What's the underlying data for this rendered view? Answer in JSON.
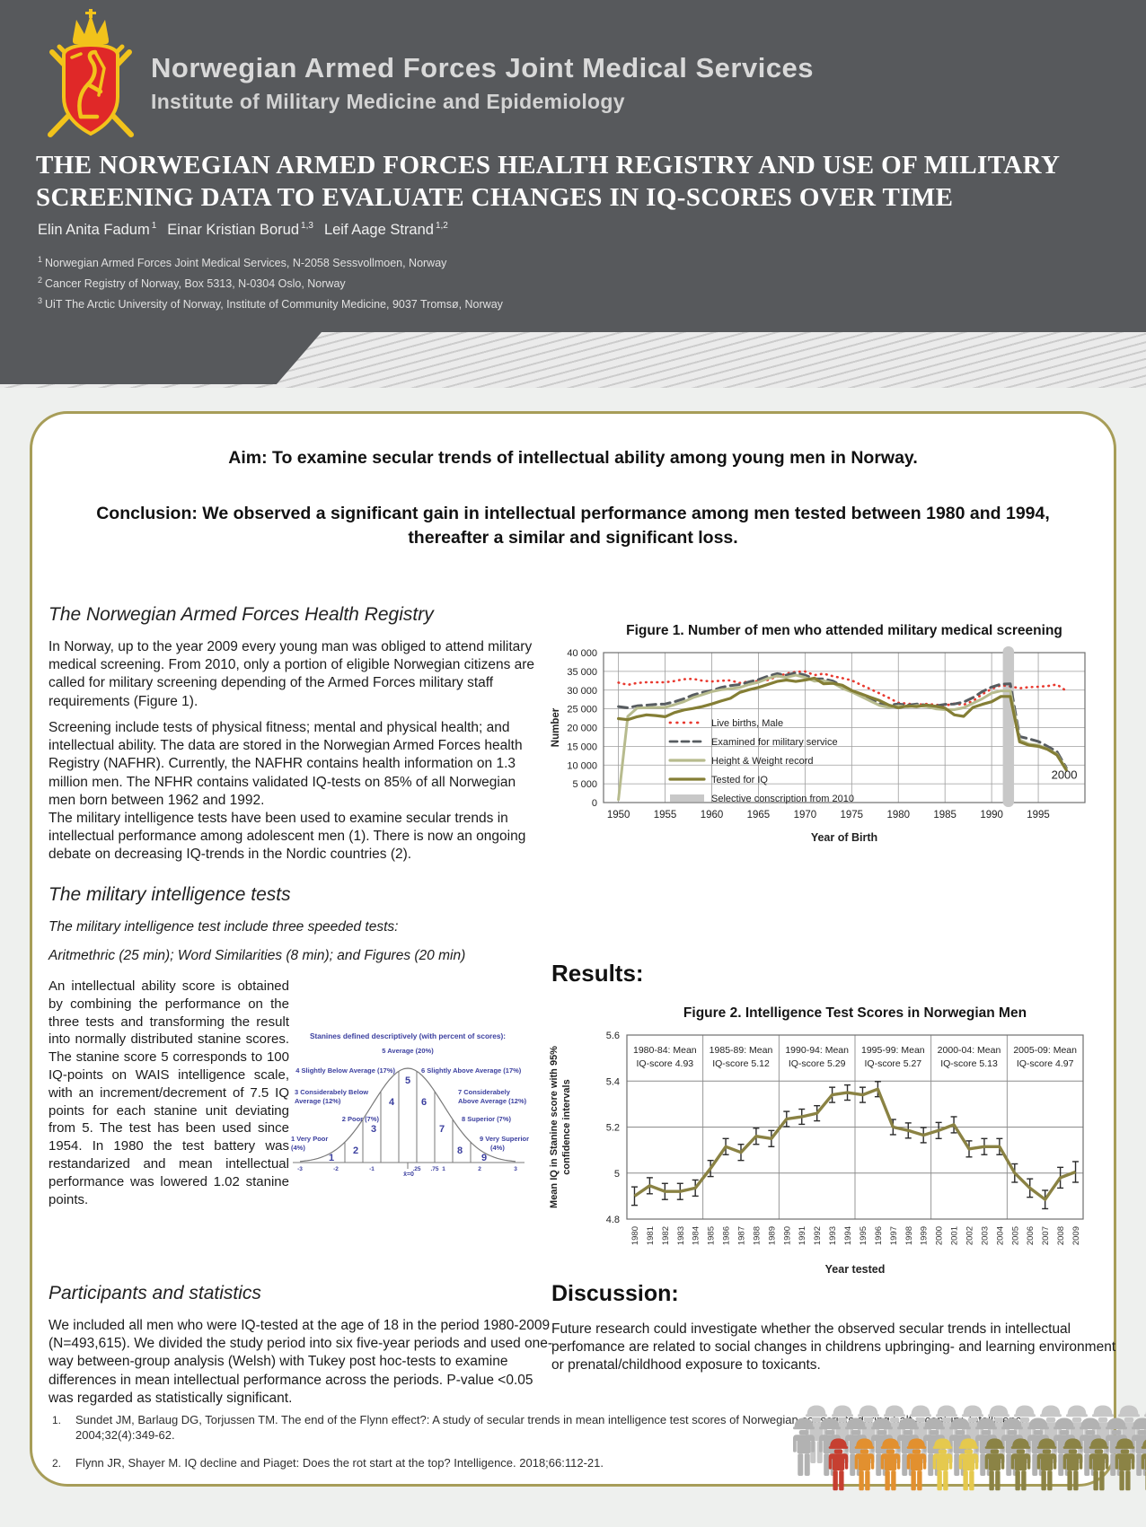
{
  "header": {
    "org_name": "Norwegian Armed Forces Joint Medical Services",
    "org_sub": "Institute of Military Medicine and Epidemiology",
    "title_line1": "THE NORWEGIAN ARMED FORCES HEALTH REGISTRY AND USE OF MILITARY",
    "title_line2": "SCREENING DATA TO EVALUATE CHANGES IN IQ-SCORES OVER TIME",
    "authors": [
      {
        "name": "Elin Anita Fadum",
        "sup": "1"
      },
      {
        "name": "Einar Kristian Borud",
        "sup": "1,3"
      },
      {
        "name": "Leif Aage Strand",
        "sup": "1,2"
      }
    ],
    "affiliations": [
      {
        "sup": "1",
        "text": "Norwegian Armed Forces Joint Medical Services, N-2058 Sessvollmoen, Norway"
      },
      {
        "sup": "2",
        "text": "Cancer Registry of Norway, Box 5313, N-0304 Oslo, Norway"
      },
      {
        "sup": "3",
        "text": "UiT The Arctic University of Norway, Institute of Community Medicine, 9037 Tromsø, Norway"
      }
    ]
  },
  "aim_box": {
    "aim_text": "Aim:  To examine secular trends of intellectual ability among young men in Norway.",
    "conclusion_text": "Conclusion:  We observed a significant gain in intellectual performance among men tested between 1980 and 1994, thereafter a similar and significant loss."
  },
  "left_column": {
    "registry_heading": "The Norwegian Armed Forces Health Registry",
    "registry_p1": "In Norway, up to the year 2009 every young man was obliged to attend military medical screening. From 2010, only a portion of eligible Norwegian citizens are called for military screening depending of the Armed Forces military staff requirements (Figure 1).",
    "registry_p2": "Screening include tests of physical fitness; mental and physical health; and intellectual ability. The data are stored in the Norwegian Armed Forces health Registry (NAFHR). Currently, the NAFHR contains health information on 1.3 million men. The NFHR contains validated IQ-tests on 85% of all Norwegian men born between 1962 and 1992.",
    "registry_p3": "The military intelligence tests have been used to examine secular trends in intellectual performance among adolescent men (1). There is now an ongoing debate on decreasing IQ-trends in the Nordic countries (2).",
    "tests_heading": "The military intelligence tests",
    "tests_intro": "The military intelligence test include three speeded tests:",
    "tests_detail": "Aritmethric (25 min); Word Similarities (8 min); and Figures (20 min)",
    "stanine_paragraph": "An intellectual ability score is obtained by combining the performance on the three tests and transforming the result into normally distributed stanine scores. The stanine score 5 corresponds to 100 IQ-points on WAIS intelligence scale, with an increment/decrement of 7.5 IQ points for each stanine unit deviating from 5. The test has been used since 1954. In 1980 the test battery was restandarized and mean intellectual performance was lowered 1.02 stanine points.",
    "participants_heading": "Participants and statistics",
    "participants_paragraph": "We included all men who were IQ-tested at the age of 18 in the period 1980-2009 (N=493,615). We divided the study period into six five-year periods and used one-way between-group analysis (Welsh) with Tukey post hoc-tests to examine differences in mean intellectual performance across the periods. P-value <0.05 was regarded as statistically significant."
  },
  "results_heading": "Results:",
  "discussion": {
    "heading": "Discussion:",
    "paragraph": "Future research could investigate whether the observed secular trends in intellectual perfomance are related to social changes in childrens upbringing- and learning environment or prenatal/childhood exposure to toxicants."
  },
  "references": [
    {
      "num": "1.",
      "text": "Sundet JM, Barlaug DG, Torjussen TM. The end of the Flynn effect?: A study of secular trends in mean intelligence test scores of Norwegian conscripts during half a century. Intelligence. 2004;32(4):349-62."
    },
    {
      "num": "2.",
      "text": "Flynn JR, Shayer M. IQ decline and Piaget: Does the rot start at the top? Intelligence. 2018;66:112-21."
    }
  ],
  "stanine_diagram": {
    "color": "#3b3f9f",
    "title": "Stanines defined descriptively (with percent of scores):",
    "label_5": "5 Average (20%)",
    "label_4": "4 Slightly Below Average (17%)",
    "label_6": "6 Slightly Above Average (17%)",
    "label_3a": "3 Considerabely Below",
    "label_3b": "Average (12%)",
    "label_7a": "7 Considerabely",
    "label_7b": "Above Average (12%)",
    "label_2": "2 Poor (7%)",
    "label_8": "8 Superior (7%)",
    "label_1a": "1 Very Poor",
    "label_1b": "(4%)",
    "label_9a": "9 Very Superior",
    "label_9b": "(4%)",
    "digits": [
      "1",
      "2",
      "3",
      "4",
      "5",
      "6",
      "7",
      "8",
      "9"
    ],
    "axis_labels": [
      "-3",
      "-2",
      "-1",
      ".25",
      ".75",
      "1",
      "2",
      "3"
    ],
    "axis_z": [
      -3,
      -2,
      -1,
      0.25,
      0.75,
      1,
      2,
      3
    ],
    "mean_label": "x̄=0"
  },
  "chart_data": [
    {
      "id": "fig1",
      "type": "line",
      "title": "Figure 1. Number of men who attended military medical screening",
      "xlabel": "Year of Birth",
      "ylabel": "Number",
      "xlim": [
        1948.4,
        2000
      ],
      "ylim": [
        0,
        40000
      ],
      "xticks": [
        1950,
        1955,
        1960,
        1965,
        1970,
        1975,
        1980,
        1985,
        1990,
        1995
      ],
      "ytick_labels": [
        "0",
        "5 000",
        "10 000",
        "15 000",
        "20 000",
        "25 000",
        "30 000",
        "35 000",
        "40 000"
      ],
      "grid": true,
      "legend_position": "lower-left",
      "annotation": {
        "text": "2000",
        "year": 1996.4,
        "value": 6300
      },
      "band": {
        "label": "Selective conscription from 2010",
        "year_start": 1991.2,
        "year_end": 1992.4,
        "color": "#c8c8c8"
      },
      "series": [
        {
          "name": "Live births, Male",
          "style": "dotted",
          "color": "#e8392f",
          "width": 2.6,
          "x_start": 1950,
          "y": [
            32000,
            31400,
            31900,
            32100,
            32100,
            32100,
            32400,
            32900,
            33000,
            32500,
            32300,
            32500,
            32600,
            31900,
            32300,
            32400,
            32700,
            33600,
            34400,
            34900,
            35000,
            34000,
            34400,
            33700,
            33200,
            32600,
            31400,
            30300,
            29100,
            27900,
            26600,
            26400,
            26100,
            26300,
            26100,
            25900,
            26400,
            26100,
            27100,
            28900,
            30300,
            31300,
            31000,
            30500,
            30800,
            30900,
            31100,
            31500,
            29800
          ]
        },
        {
          "name": "Examined for military service",
          "style": "dashed",
          "color": "#575c60",
          "width": 3,
          "x_start": 1950,
          "y": [
            25600,
            25300,
            25800,
            26000,
            26200,
            26300,
            26900,
            27700,
            28700,
            29400,
            29900,
            30700,
            31200,
            31500,
            32200,
            32800,
            33700,
            34400,
            34000,
            34600,
            34000,
            33000,
            33000,
            32400,
            31100,
            30000,
            28800,
            27600,
            26400,
            26000,
            26300,
            26000,
            26300,
            26000,
            25800,
            26200,
            26300,
            26800,
            28000,
            29600,
            30800,
            31600,
            31700,
            17600,
            17000,
            16300,
            15000,
            13600,
            9300
          ]
        },
        {
          "name": "Height & Weight record",
          "style": "solid",
          "color": "#b7bb8e",
          "width": 3,
          "x_start": 1950,
          "y": [
            800,
            23000,
            25200,
            25300,
            25400,
            25400,
            26100,
            26900,
            28000,
            28800,
            29600,
            30100,
            30400,
            30700,
            31500,
            32100,
            33100,
            33800,
            33400,
            34000,
            33400,
            32400,
            32500,
            31900,
            30500,
            29500,
            28300,
            27100,
            25900,
            25400,
            25800,
            25500,
            25900,
            25600,
            25000,
            24800,
            24800,
            25300,
            26500,
            27700,
            29200,
            29800,
            29800,
            16700,
            15600,
            15300,
            14300,
            12900,
            8900
          ]
        },
        {
          "name": "Tested for IQ",
          "style": "solid",
          "color": "#847e35",
          "width": 3.2,
          "x_start": 1950,
          "y": [
            22400,
            22100,
            22900,
            23400,
            23200,
            22900,
            24000,
            24700,
            25100,
            25600,
            26300,
            27100,
            27800,
            29400,
            30100,
            30700,
            31500,
            32300,
            32700,
            32300,
            32700,
            33200,
            31700,
            31800,
            31300,
            29900,
            29000,
            28100,
            27200,
            26000,
            25300,
            25800,
            25600,
            26000,
            25700,
            25200,
            23400,
            23000,
            25400,
            26200,
            26900,
            28300,
            28300,
            16200,
            15300,
            15000,
            14200,
            12700,
            8700
          ]
        }
      ]
    },
    {
      "id": "fig2",
      "type": "line",
      "title": "Figure 2. Intelligence Test Scores in Norwegian Men",
      "xlabel": "Year tested",
      "ylabel_line1": "Mean IQ in Stanine score with 95%",
      "ylabel_line2": "confidence intervals",
      "xlim": [
        1979.5,
        2009.5
      ],
      "ylim": [
        4.8,
        5.6
      ],
      "yticks": [
        5.6,
        5.4,
        5.2,
        5,
        4.8
      ],
      "ytick_labels": [
        "5.6",
        "5.4",
        "5.2",
        "5",
        "4.8"
      ],
      "line_color": "#8a8243",
      "period_boundaries": [
        1984.5,
        1989.5,
        1994.5,
        1999.5,
        2004.5
      ],
      "periods": [
        {
          "line1": "1980-84: Mean",
          "line2": "IQ-score 4.93"
        },
        {
          "line1": "1985-89: Mean",
          "line2": "IQ-score 5.12"
        },
        {
          "line1": "1990-94: Mean",
          "line2": "IQ-score 5.29"
        },
        {
          "line1": "1995-99: Mean",
          "line2": "IQ-score 5.27"
        },
        {
          "line1": "2000-04: Mean",
          "line2": "IQ-score 5.13"
        },
        {
          "line1": "2005-09: Mean",
          "line2": "IQ-score 4.97"
        }
      ],
      "years": [
        1980,
        1981,
        1982,
        1983,
        1984,
        1985,
        1986,
        1987,
        1988,
        1989,
        1990,
        1991,
        1992,
        1993,
        1994,
        1995,
        1996,
        1997,
        1998,
        1999,
        2000,
        2001,
        2002,
        2003,
        2004,
        2005,
        2006,
        2007,
        2008,
        2009
      ],
      "means": [
        4.9,
        4.945,
        4.92,
        4.92,
        4.935,
        5.02,
        5.115,
        5.09,
        5.16,
        5.15,
        5.235,
        5.245,
        5.26,
        5.34,
        5.35,
        5.34,
        5.365,
        5.2,
        5.185,
        5.165,
        5.185,
        5.21,
        5.105,
        5.115,
        5.115,
        5.0,
        4.935,
        4.885,
        4.98,
        5.005
      ],
      "ci": [
        0.04,
        0.035,
        0.035,
        0.035,
        0.035,
        0.035,
        0.035,
        0.035,
        0.035,
        0.035,
        0.033,
        0.033,
        0.033,
        0.033,
        0.033,
        0.033,
        0.033,
        0.033,
        0.033,
        0.033,
        0.035,
        0.035,
        0.035,
        0.035,
        0.035,
        0.04,
        0.04,
        0.04,
        0.045,
        0.045
      ]
    }
  ],
  "soldiers": {
    "back_color": "#c7c7c7",
    "mid_color": "#b2b2b2",
    "front_colors": [
      "#c63f31",
      "#e2902f",
      "#e2902f",
      "#e2902f",
      "#e5c94e",
      "#e5c94e",
      "#8b8345",
      "#8b8345",
      "#8b8345",
      "#8b8345",
      "#8b8345",
      "#8b8345",
      "#8b8345"
    ]
  }
}
